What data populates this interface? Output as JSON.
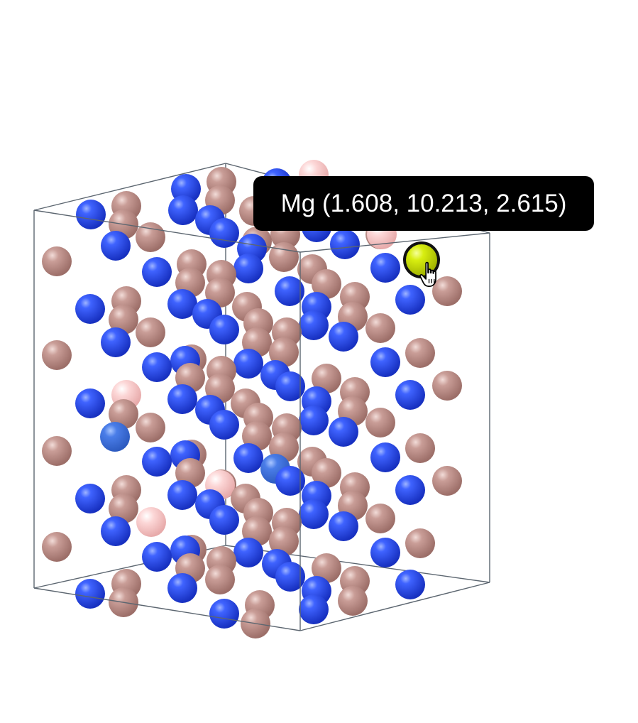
{
  "viewer": {
    "tooltip_text": "Mg (1.608, 10.213, 2.615)",
    "colors": {
      "background": "#ffffff",
      "cell_edge": "#5c6670",
      "atom_blue": "#2447e8",
      "atom_blue_light": "#3a6fe0",
      "atom_rose": "#c0908a",
      "atom_pink": "#fbc9c9",
      "atom_selected": "#d8ee10",
      "tooltip_bg": "#000000",
      "tooltip_fg": "#ffffff"
    },
    "icons": {
      "cursor": "pointer-hand-icon"
    }
  }
}
